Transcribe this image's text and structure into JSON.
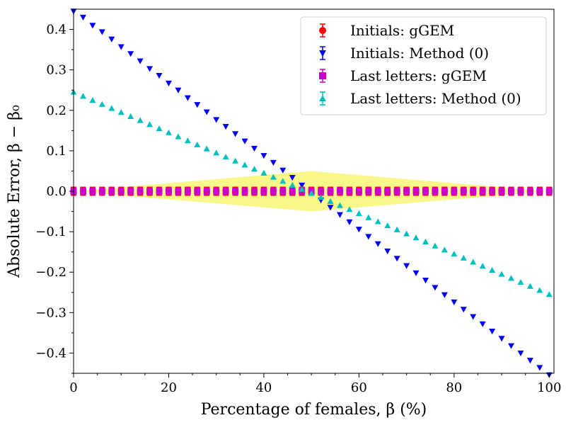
{
  "chart_data": {
    "type": "scatter",
    "xlabel": "Percentage of females, β (%)",
    "ylabel": "Absolute Error, β − β₀",
    "xlim": [
      0,
      101
    ],
    "ylim": [
      -0.45,
      0.45
    ],
    "x_ticks": [
      0,
      20,
      40,
      60,
      80,
      100
    ],
    "x_tick_labels": [
      "0",
      "20",
      "40",
      "60",
      "80",
      "100"
    ],
    "y_ticks": [
      -0.4,
      -0.3,
      -0.2,
      -0.1,
      0.0,
      0.1,
      0.2,
      0.3,
      0.4
    ],
    "y_tick_labels": [
      "−0.4",
      "−0.3",
      "−0.2",
      "−0.1",
      "0.0",
      "0.1",
      "0.2",
      "0.3",
      "0.4"
    ],
    "grid": false,
    "legend_position": "top-right",
    "x": [
      0,
      2,
      4,
      6,
      8,
      10,
      12,
      14,
      16,
      18,
      20,
      22,
      24,
      26,
      28,
      30,
      32,
      34,
      36,
      38,
      40,
      42,
      44,
      46,
      48,
      50,
      52,
      54,
      56,
      58,
      60,
      62,
      64,
      66,
      68,
      70,
      72,
      74,
      76,
      78,
      80,
      82,
      84,
      86,
      88,
      90,
      92,
      94,
      96,
      98,
      100
    ],
    "series": [
      {
        "name": "Initials: gGEM",
        "marker": "circle",
        "color": "#ff0000",
        "values": [
          0,
          0,
          0,
          0,
          0,
          0,
          0,
          0,
          0,
          0,
          0,
          0,
          0,
          0,
          0,
          0,
          0,
          0,
          0,
          0,
          0,
          0,
          0,
          0,
          0,
          0,
          0,
          0,
          0,
          0,
          0,
          0,
          0,
          0,
          0,
          0,
          0,
          0,
          0,
          0,
          0,
          0,
          0,
          0,
          0,
          0,
          0,
          0,
          0,
          0,
          0
        ],
        "error": 0.01
      },
      {
        "name": "Initials: Method (0)",
        "marker": "triangle-down",
        "color": "#0000ff",
        "values": [
          0.445,
          0.43,
          0.41,
          0.394,
          0.376,
          0.357,
          0.34,
          0.322,
          0.303,
          0.286,
          0.267,
          0.25,
          0.231,
          0.214,
          0.196,
          0.177,
          0.16,
          0.142,
          0.124,
          0.106,
          0.088,
          0.071,
          0.052,
          0.034,
          0.015,
          -0.003,
          -0.022,
          -0.04,
          -0.058,
          -0.076,
          -0.094,
          -0.112,
          -0.13,
          -0.148,
          -0.166,
          -0.184,
          -0.202,
          -0.22,
          -0.238,
          -0.256,
          -0.274,
          -0.292,
          -0.31,
          -0.328,
          -0.346,
          -0.364,
          -0.382,
          -0.4,
          -0.418,
          -0.436,
          -0.454
        ]
      },
      {
        "name": "Last letters: gGEM",
        "marker": "square",
        "color": "#cc00cc",
        "values": [
          0,
          0,
          0,
          0,
          0,
          0,
          0,
          0,
          0,
          0,
          0,
          0,
          0,
          0,
          0,
          0,
          0,
          0,
          0,
          0,
          0,
          0,
          0,
          0,
          0,
          0,
          0,
          0,
          0,
          0,
          0,
          0,
          0,
          0,
          0,
          0,
          0,
          0,
          0,
          0,
          0,
          0,
          0,
          0,
          0,
          0,
          0,
          0,
          0,
          0,
          0
        ],
        "error": 0.008
      },
      {
        "name": "Last letters: Method (0)",
        "marker": "triangle-up",
        "color": "#00bfbf",
        "values": [
          0.245,
          0.235,
          0.225,
          0.215,
          0.205,
          0.195,
          0.185,
          0.175,
          0.165,
          0.155,
          0.145,
          0.135,
          0.125,
          0.115,
          0.105,
          0.095,
          0.085,
          0.075,
          0.065,
          0.055,
          0.045,
          0.035,
          0.025,
          0.015,
          0.005,
          -0.005,
          -0.015,
          -0.025,
          -0.035,
          -0.045,
          -0.055,
          -0.065,
          -0.075,
          -0.085,
          -0.095,
          -0.105,
          -0.115,
          -0.125,
          -0.135,
          -0.145,
          -0.155,
          -0.165,
          -0.175,
          -0.185,
          -0.195,
          -0.205,
          -0.215,
          -0.225,
          -0.235,
          -0.245,
          -0.255
        ]
      }
    ],
    "band": {
      "color": "#f7f78a",
      "x": [
        0,
        50,
        100
      ],
      "half_width": [
        0.0,
        0.05,
        0.0
      ]
    }
  }
}
